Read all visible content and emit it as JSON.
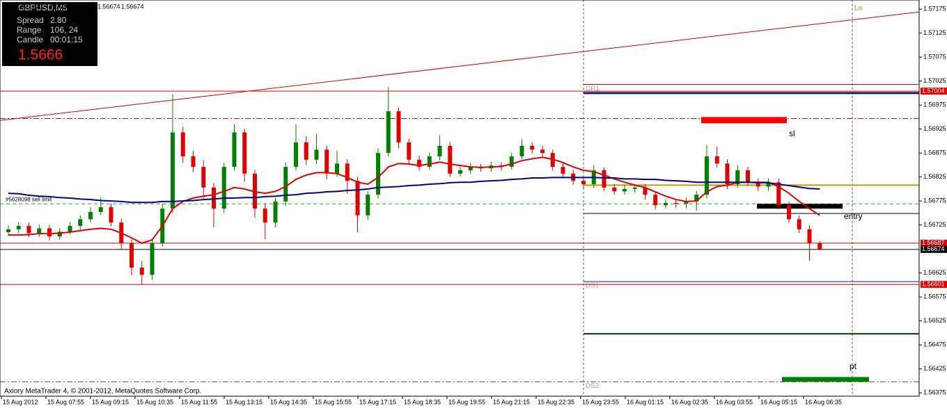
{
  "chart_data": {
    "type": "candlestick",
    "symbol_header": "GBPUSD,,M5",
    "ylim": [
      1.56368,
      1.57194
    ],
    "yticks": [
      1.56375,
      1.56425,
      1.56475,
      1.56525,
      1.56575,
      1.56625,
      1.56725,
      1.56775,
      1.56825,
      1.56875,
      1.56925,
      1.56975,
      1.57025,
      1.57075,
      1.57125,
      1.57175
    ],
    "time_labels": [
      "15 Aug 2012",
      "15 Aug 07:55",
      "15 Aug 09:15",
      "15 Aug 10:35",
      "15 Aug 11:55",
      "15 Aug 13:15",
      "15 Aug 14:35",
      "15 Aug 15:55",
      "15 Aug 17:15",
      "15 Aug 18:35",
      "15 Aug 19:55",
      "15 Aug 21:15",
      "15 Aug 22:35",
      "15 Aug 23:55",
      "16 Aug 01:15",
      "16 Aug 02:35",
      "16 Aug 03:55",
      "16 Aug 05:15",
      "16 Aug 06:35"
    ],
    "up_color": "#008000",
    "down_color": "#e00000",
    "candles": [
      [
        1.5671,
        1.56724,
        1.56702,
        1.56716
      ],
      [
        1.56716,
        1.56731,
        1.56708,
        1.56723
      ],
      [
        1.56723,
        1.5673,
        1.567,
        1.56708
      ],
      [
        1.56708,
        1.56726,
        1.567,
        1.56718
      ],
      [
        1.56718,
        1.56725,
        1.56693,
        1.56701
      ],
      [
        1.56701,
        1.56719,
        1.56694,
        1.56711
      ],
      [
        1.56711,
        1.56731,
        1.56705,
        1.56723
      ],
      [
        1.56723,
        1.56745,
        1.56715,
        1.56737
      ],
      [
        1.56737,
        1.56762,
        1.5673,
        1.56752
      ],
      [
        1.56752,
        1.56782,
        1.56745,
        1.56762
      ],
      [
        1.56762,
        1.5677,
        1.56722,
        1.5673
      ],
      [
        1.5673,
        1.56738,
        1.56675,
        1.56687
      ],
      [
        1.56687,
        1.56695,
        1.5662,
        1.56636
      ],
      [
        1.56636,
        1.5665,
        1.566,
        1.56621
      ],
      [
        1.56621,
        1.56695,
        1.5661,
        1.56687
      ],
      [
        1.56687,
        1.5677,
        1.5668,
        1.56759
      ],
      [
        1.56759,
        1.56998,
        1.5675,
        1.56918
      ],
      [
        1.56918,
        1.5693,
        1.56855,
        1.56868
      ],
      [
        1.56868,
        1.5688,
        1.56835,
        1.56846
      ],
      [
        1.56846,
        1.5686,
        1.5678,
        1.56803
      ],
      [
        1.56803,
        1.56812,
        1.5672,
        1.56759
      ],
      [
        1.56759,
        1.56855,
        1.5675,
        1.56846
      ],
      [
        1.56846,
        1.56935,
        1.56838,
        1.56918
      ],
      [
        1.56918,
        1.56926,
        1.56815,
        1.56832
      ],
      [
        1.56832,
        1.5684,
        1.5674,
        1.56759
      ],
      [
        1.56759,
        1.5677,
        1.56695,
        1.5673
      ],
      [
        1.5673,
        1.56782,
        1.5672,
        1.56774
      ],
      [
        1.56774,
        1.56855,
        1.56765,
        1.56846
      ],
      [
        1.56846,
        1.56935,
        1.56838,
        1.56897
      ],
      [
        1.56897,
        1.5691,
        1.5685,
        1.56861
      ],
      [
        1.56861,
        1.56915,
        1.56852,
        1.56882
      ],
      [
        1.56882,
        1.5689,
        1.5682,
        1.56832
      ],
      [
        1.56832,
        1.5688,
        1.56825,
        1.56853
      ],
      [
        1.56853,
        1.56862,
        1.5679,
        1.56817
      ],
      [
        1.56817,
        1.56825,
        1.5671,
        1.56745
      ],
      [
        1.56745,
        1.56796,
        1.56735,
        1.56788
      ],
      [
        1.56788,
        1.56885,
        1.5678,
        1.56875
      ],
      [
        1.56875,
        1.57013,
        1.56868,
        1.56962
      ],
      [
        1.56962,
        1.5697,
        1.56885,
        1.56897
      ],
      [
        1.56897,
        1.56905,
        1.5685,
        1.56861
      ],
      [
        1.56861,
        1.5687,
        1.56838,
        1.56846
      ],
      [
        1.56846,
        1.56876,
        1.5684,
        1.56868
      ],
      [
        1.56868,
        1.56912,
        1.5686,
        1.5689
      ],
      [
        1.5689,
        1.56898,
        1.56825,
        1.56832
      ],
      [
        1.56832,
        1.56847,
        1.56826,
        1.56839
      ],
      [
        1.56839,
        1.56854,
        1.56832,
        1.56846
      ],
      [
        1.56846,
        1.56852,
        1.56836,
        1.56843
      ],
      [
        1.56843,
        1.56857,
        1.56836,
        1.56849
      ],
      [
        1.56849,
        1.56856,
        1.56838,
        1.56846
      ],
      [
        1.56846,
        1.56876,
        1.5684,
        1.56868
      ],
      [
        1.56868,
        1.56904,
        1.56862,
        1.5689
      ],
      [
        1.5689,
        1.56898,
        1.56874,
        1.56882
      ],
      [
        1.56882,
        1.5689,
        1.56866,
        1.56875
      ],
      [
        1.56875,
        1.56882,
        1.56838,
        1.56846
      ],
      [
        1.56846,
        1.56854,
        1.56824,
        1.56832
      ],
      [
        1.56832,
        1.5684,
        1.56808,
        1.56817
      ],
      [
        1.56817,
        1.56825,
        1.568,
        1.5681
      ],
      [
        1.5681,
        1.5685,
        1.56802,
        1.56839
      ],
      [
        1.56839,
        1.56845,
        1.56795,
        1.56803
      ],
      [
        1.56803,
        1.5681,
        1.56788,
        1.56795
      ],
      [
        1.56795,
        1.56808,
        1.56788,
        1.568
      ],
      [
        1.568,
        1.5681,
        1.56792,
        1.56803
      ],
      [
        1.56803,
        1.5681,
        1.56778,
        1.56788
      ],
      [
        1.56788,
        1.56795,
        1.56758,
        1.56766
      ],
      [
        1.56766,
        1.56779,
        1.56759,
        1.56771
      ],
      [
        1.56771,
        1.56778,
        1.5676,
        1.56769
      ],
      [
        1.56769,
        1.56782,
        1.5676,
        1.56774
      ],
      [
        1.56774,
        1.56796,
        1.56755,
        1.56788
      ],
      [
        1.56788,
        1.56892,
        1.5678,
        1.56868
      ],
      [
        1.56868,
        1.56888,
        1.56845,
        1.56853
      ],
      [
        1.56853,
        1.56862,
        1.568,
        1.5681
      ],
      [
        1.5681,
        1.5685,
        1.56802,
        1.56839
      ],
      [
        1.56839,
        1.56846,
        1.56806,
        1.56814
      ],
      [
        1.56814,
        1.56822,
        1.56796,
        1.56805
      ],
      [
        1.56805,
        1.56822,
        1.56796,
        1.56814
      ],
      [
        1.56814,
        1.56822,
        1.56758,
        1.56766
      ],
      [
        1.56766,
        1.56774,
        1.56729,
        1.56737
      ],
      [
        1.56737,
        1.56745,
        1.56708,
        1.56716
      ],
      [
        1.56716,
        1.56724,
        1.5665,
        1.56687
      ],
      [
        1.56687,
        1.56691,
        1.56674,
        1.56674
      ]
    ],
    "moving_averages": [
      {
        "color": "#e00000",
        "values": [
          1.56704,
          1.56704,
          1.56705,
          1.56707,
          1.56707,
          1.56708,
          1.5671,
          1.56713,
          1.56716,
          1.56718,
          1.56716,
          1.56708,
          1.56698,
          1.56687,
          1.56694,
          1.56723,
          1.56759,
          1.56774,
          1.56781,
          1.56785,
          1.56788,
          1.56795,
          1.56803,
          1.568,
          1.56794,
          1.56791,
          1.56795,
          1.56805,
          1.5682,
          1.56829,
          1.56834,
          1.56834,
          1.56832,
          1.56824,
          1.56814,
          1.5681,
          1.56824,
          1.56846,
          1.56853,
          1.56852,
          1.56849,
          1.56852,
          1.56856,
          1.56852,
          1.56849,
          1.56846,
          1.56845,
          1.56846,
          1.56847,
          1.56852,
          1.56859,
          1.56863,
          1.56866,
          1.56862,
          1.56855,
          1.56846,
          1.56839,
          1.56836,
          1.56829,
          1.56821,
          1.56814,
          1.56808,
          1.56803,
          1.56794,
          1.56785,
          1.56778,
          1.56774,
          1.56775,
          1.56794,
          1.56805,
          1.56808,
          1.56814,
          1.56814,
          1.56814,
          1.56814,
          1.56805,
          1.56791,
          1.56774,
          1.56759,
          1.56745
        ]
      },
      {
        "color": "#00008b",
        "values": [
          1.56791,
          1.5679,
          1.56787,
          1.56785,
          1.56784,
          1.56782,
          1.56781,
          1.56779,
          1.56778,
          1.56776,
          1.56775,
          1.56774,
          1.56772,
          1.56772,
          1.56772,
          1.56774,
          1.56774,
          1.56775,
          1.56776,
          1.56778,
          1.56779,
          1.56781,
          1.56781,
          1.56782,
          1.56782,
          1.56784,
          1.56785,
          1.56787,
          1.56788,
          1.56791,
          1.56792,
          1.56794,
          1.56795,
          1.56797,
          1.56798,
          1.568,
          1.56803,
          1.56804,
          1.56805,
          1.56807,
          1.56808,
          1.5681,
          1.56811,
          1.56813,
          1.56814,
          1.56814,
          1.56816,
          1.56817,
          1.56818,
          1.5682,
          1.56821,
          1.56823,
          1.56823,
          1.56824,
          1.56824,
          1.56824,
          1.56824,
          1.56824,
          1.56823,
          1.56823,
          1.56821,
          1.56821,
          1.5682,
          1.5682,
          1.56818,
          1.56817,
          1.56816,
          1.56814,
          1.56814,
          1.56814,
          1.56814,
          1.56814,
          1.56814,
          1.56813,
          1.56813,
          1.5681,
          1.56807,
          1.56804,
          1.56801,
          1.568
        ]
      }
    ],
    "trendline": {
      "color": "#cc0000",
      "values": [
        1.56943,
        1.57169
      ]
    },
    "levels": [
      {
        "value": 1.57018,
        "color": "#cc0000",
        "style": "solid",
        "span": "session"
      },
      {
        "value": 1.57004,
        "color": "#e00000",
        "style": "solid",
        "span": "full",
        "tag": true
      },
      {
        "value": 1.57,
        "color": "#1a1a5e",
        "style": "solid",
        "span": "session",
        "width": 3,
        "label": "DR1"
      },
      {
        "value": 1.56947,
        "color": "#cc0000",
        "style": "dashdot",
        "span": "full"
      },
      {
        "value": 1.56808,
        "color": "#b8a000",
        "style": "solid",
        "span": "session",
        "width": 2
      },
      {
        "value": 1.56769,
        "color": "#22aa22",
        "style": "dash",
        "span": "full",
        "label": "#5628098 sell limit"
      },
      {
        "value": 1.56749,
        "color": "#000000",
        "style": "solid",
        "span": "session"
      },
      {
        "value": 1.56687,
        "color": "#e00000",
        "style": "solid",
        "span": "full",
        "tag": true
      },
      {
        "value": 1.56674,
        "color": "#000000",
        "style": "solid",
        "span": "full",
        "tag": true
      },
      {
        "value": 1.56607,
        "color": "#1a1a8e",
        "style": "solid",
        "span": "session",
        "label": "DS1"
      },
      {
        "value": 1.56601,
        "color": "#e00000",
        "style": "solid",
        "span": "full",
        "tag": true
      },
      {
        "value": 1.56498,
        "color": "#003300",
        "style": "solid",
        "span": "session",
        "width": 2
      },
      {
        "value": 1.56398,
        "color": "#8b2252",
        "style": "dashdot",
        "span": "full",
        "label": "DS2"
      }
    ],
    "zones": [
      {
        "label": "sl",
        "top": 1.5695,
        "bottom": 1.56937,
        "color": "#ff0000"
      },
      {
        "label": "entry",
        "top": 1.56769,
        "bottom": 1.56759,
        "color": "#000000"
      },
      {
        "label": "pt",
        "top": 1.56408,
        "bottom": 1.56398,
        "color": "#008000"
      }
    ],
    "annotations": [
      "Lo"
    ],
    "info": {
      "title": "GBPUSD,M5",
      "rows": [
        [
          "Spread",
          "2.80"
        ],
        [
          "Range",
          "106, 24"
        ],
        [
          "Candle",
          "00:01:15"
        ]
      ],
      "price": "1.5666"
    },
    "footer": "Axiory MetaTrader 4, © 2001-2012, MetaQuotes Software Corp."
  }
}
